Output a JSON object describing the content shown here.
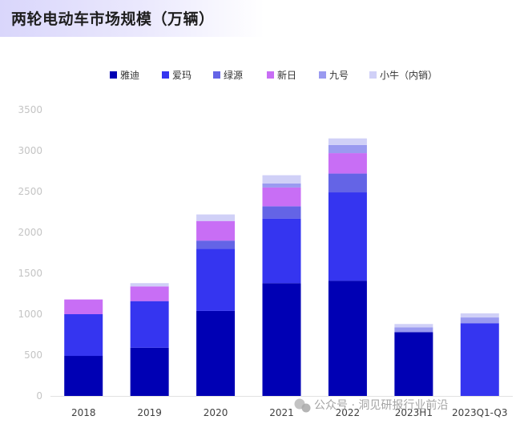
{
  "chart_data": {
    "type": "bar",
    "stacked": true,
    "title": "两轮电动车市场规模（万辆）",
    "categories": [
      "2018",
      "2019",
      "2020",
      "2021",
      "2022",
      "2023H1",
      "2023Q1-Q3"
    ],
    "ylim": [
      0,
      3500
    ],
    "yticks": [
      0,
      500,
      1000,
      1500,
      2000,
      2500,
      3000,
      3500
    ],
    "grid": false,
    "legend_position": "top",
    "series": [
      {
        "name": "雅迪",
        "color": "#0000b4",
        "values": [
          490,
          590,
          1040,
          1380,
          1410,
          780,
          0
        ]
      },
      {
        "name": "爱玛",
        "color": "#3535f0",
        "values": [
          510,
          570,
          760,
          790,
          1080,
          0,
          890
        ]
      },
      {
        "name": "绿源",
        "color": "#6464e6",
        "values": [
          0,
          0,
          100,
          150,
          230,
          0,
          0
        ]
      },
      {
        "name": "新日",
        "color": "#c86ef5",
        "values": [
          180,
          180,
          240,
          230,
          250,
          0,
          0
        ]
      },
      {
        "name": "九号",
        "color": "#9a9af0",
        "values": [
          0,
          0,
          0,
          50,
          100,
          60,
          70
        ]
      },
      {
        "name": "小牛（内销）",
        "color": "#d0d0f7",
        "values": [
          0,
          40,
          80,
          100,
          80,
          40,
          50
        ]
      }
    ]
  },
  "watermark": "公众号 · 洞见研报行业前沿"
}
